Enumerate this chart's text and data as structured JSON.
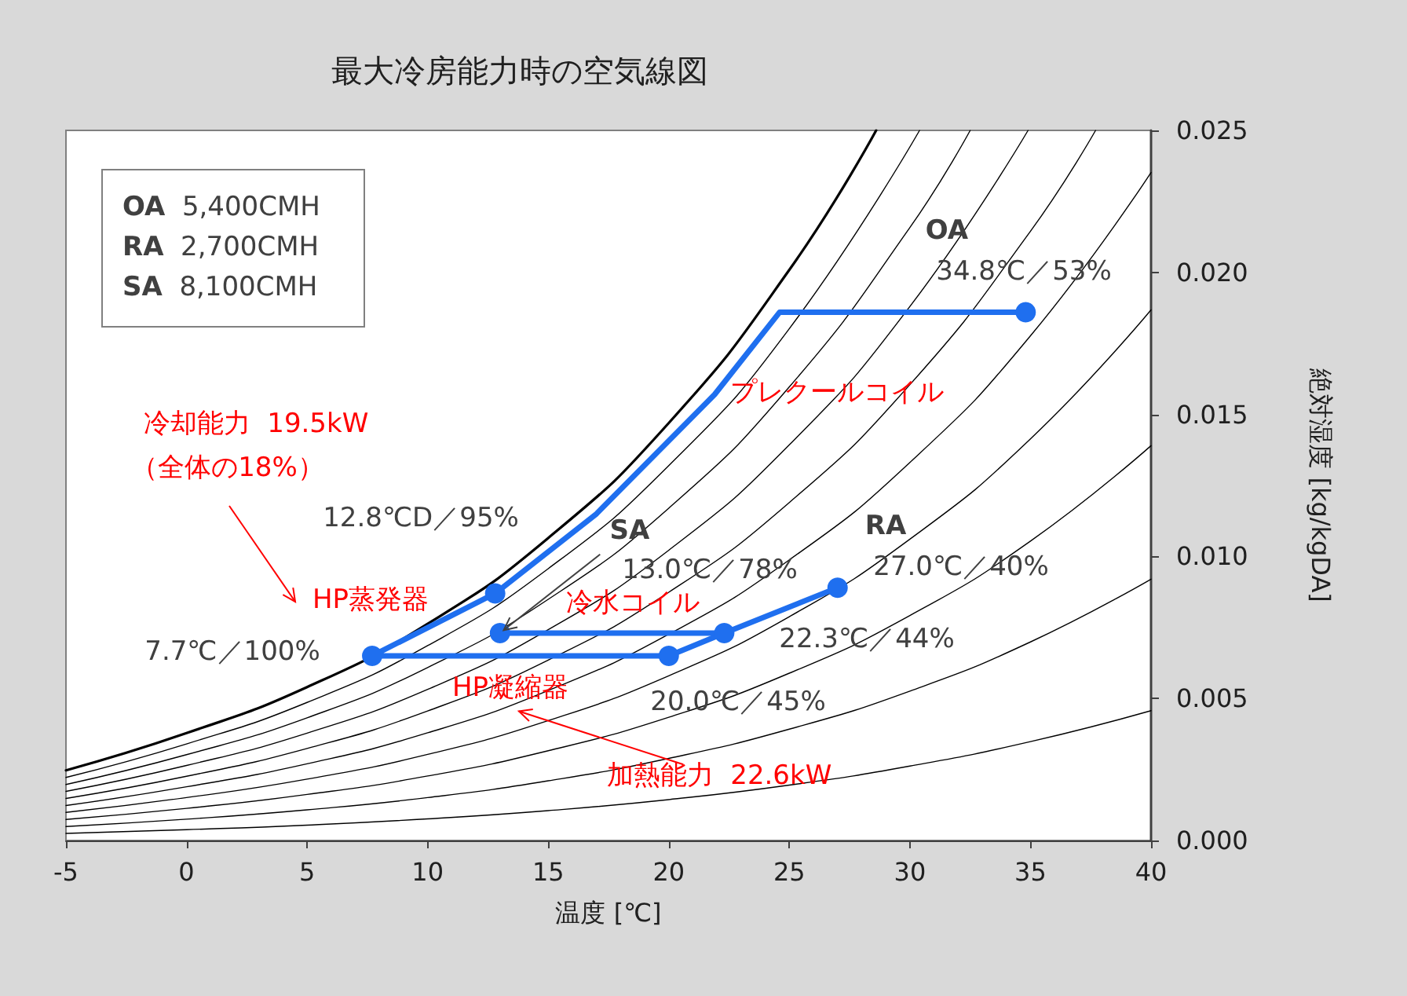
{
  "chart_data": {
    "type": "line",
    "title": "最大冷房能力時の空気線図",
    "xlabel": "温度 [℃]",
    "ylabel": "絶対湿度 [kg/kgDA]",
    "xlim": [
      -5,
      40
    ],
    "xticks": [
      -5,
      0,
      5,
      10,
      15,
      20,
      25,
      30,
      35,
      40
    ],
    "ylim": [
      0,
      0.025
    ],
    "yticks": [
      {
        "value": 0,
        "label": "0.000"
      },
      {
        "value": 0.005,
        "label": "0.005"
      },
      {
        "value": 0.01,
        "label": "0.010"
      },
      {
        "value": 0.015,
        "label": "0.015"
      },
      {
        "value": 0.02,
        "label": "0.020"
      },
      {
        "value": 0.025,
        "label": "0.025"
      }
    ],
    "marker": "none",
    "series": [
      {
        "color": "#000000",
        "x": [
          -5,
          0,
          5,
          10,
          15,
          20,
          25,
          28.6
        ],
        "values": [
          0.00247,
          0.00378,
          0.0054,
          0.00763,
          0.01065,
          0.0147,
          0.02009,
          0.025
        ]
      },
      {
        "color": "#000000",
        "x": [
          -5,
          0,
          5,
          10,
          15,
          20,
          25,
          30.4
        ],
        "values": [
          0.00222,
          0.0034,
          0.00486,
          0.00686,
          0.00957,
          0.0132,
          0.01802,
          0.025
        ]
      },
      {
        "color": "#000000",
        "x": [
          -5,
          0,
          5,
          10,
          15,
          20,
          25,
          30,
          32.5
        ],
        "values": [
          0.00197,
          0.00302,
          0.00432,
          0.00609,
          0.00849,
          0.0117,
          0.01597,
          0.02158,
          0.025
        ]
      },
      {
        "color": "#000000",
        "x": [
          -5,
          0,
          5,
          10,
          15,
          20,
          25,
          30,
          34.9
        ],
        "values": [
          0.00173,
          0.00264,
          0.00378,
          0.00532,
          0.00742,
          0.01022,
          0.01393,
          0.0188,
          0.025
        ]
      },
      {
        "color": "#000000",
        "x": [
          -5,
          0,
          5,
          10,
          15,
          20,
          25,
          30,
          35,
          37.7
        ],
        "values": [
          0.00148,
          0.00226,
          0.00324,
          0.00456,
          0.00635,
          0.00874,
          0.0119,
          0.01605,
          0.02145,
          0.025
        ]
      },
      {
        "color": "#000000",
        "x": [
          -5,
          0,
          5,
          10,
          15,
          20,
          25,
          30,
          35,
          40
        ],
        "values": [
          0.00123,
          0.00189,
          0.0027,
          0.00379,
          0.00528,
          0.00726,
          0.00988,
          0.01331,
          0.01777,
          0.02352
        ]
      },
      {
        "color": "#000000",
        "x": [
          -5,
          0,
          5,
          10,
          15,
          20,
          25,
          30,
          35,
          40
        ],
        "values": [
          0.00099,
          0.00151,
          0.00216,
          0.00303,
          0.00422,
          0.0058,
          0.00788,
          0.01061,
          0.01414,
          0.01868
        ]
      },
      {
        "color": "#000000",
        "x": [
          -5,
          0,
          5,
          10,
          15,
          20,
          25,
          30,
          35,
          40
        ],
        "values": [
          0.00074,
          0.00113,
          0.00162,
          0.00227,
          0.00316,
          0.00434,
          0.00589,
          0.00792,
          0.01054,
          0.0139
        ]
      },
      {
        "color": "#000000",
        "x": [
          -5,
          0,
          5,
          10,
          15,
          20,
          25,
          30,
          35,
          40
        ],
        "values": [
          0.00049,
          0.00075,
          0.00108,
          0.00151,
          0.0021,
          0.00289,
          0.00392,
          0.00526,
          0.00699,
          0.0092
        ]
      },
      {
        "color": "#000000",
        "x": [
          -5,
          0,
          5,
          10,
          15,
          20,
          25,
          30,
          35,
          40
        ],
        "values": [
          0.00025,
          0.00038,
          0.00054,
          0.00076,
          0.00105,
          0.00144,
          0.00195,
          0.00262,
          0.00348,
          0.00457
        ]
      },
      {
        "color": "#1f6fef",
        "x": [
          34.8,
          24.6,
          21.9,
          17.0,
          12.8,
          7.7,
          20.0,
          22.3,
          27.0
        ],
        "values": [
          0.0186,
          0.0186,
          0.0157,
          0.0115,
          0.0087,
          0.0065,
          0.0065,
          0.0073,
          0.0089
        ]
      },
      {
        "color": "#1f6fef",
        "x": [
          22.3,
          13.0
        ],
        "values": [
          0.0073,
          0.0073
        ]
      },
      {
        "type": "scatter",
        "marker": "circle",
        "color": "#1f6fef",
        "x": [
          34.8,
          12.8,
          7.7,
          20.0,
          22.3,
          27.0,
          13.0
        ],
        "values": [
          0.0186,
          0.0087,
          0.0065,
          0.0065,
          0.0073,
          0.0089,
          0.0073
        ]
      }
    ],
    "annotations": [
      "OA",
      "34.8℃／53%",
      "プレクールコイル",
      "冷却能力  19.5kW",
      "（全体の18%）",
      "12.8℃D／95%",
      {
        "text": "SA",
        "x": 13.0,
        "y": 0.0073
      },
      "13.0℃／78%",
      "RA",
      "27.0℃／40%",
      "HP蒸発器",
      "冷水コイル",
      "7.7℃／100%",
      "22.3℃／44%",
      "HP凝縮器",
      "20.0℃／45%",
      {
        "text": "加熱能力  22.6kW",
        "x": 13.6,
        "y": 0.0046
      },
      "OA  5,400CMH",
      "RA  2,700CMH",
      "SA  8,100CMH"
    ]
  }
}
